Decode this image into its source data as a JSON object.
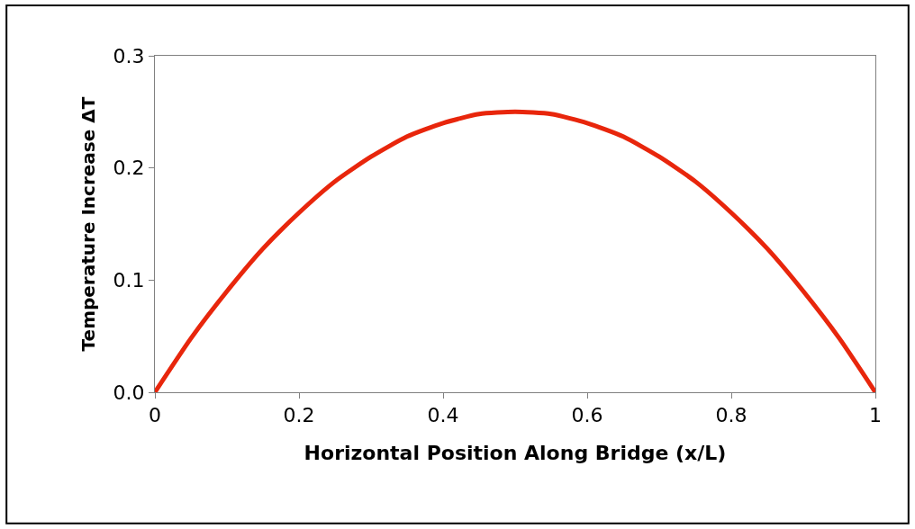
{
  "chart_data": {
    "type": "line",
    "xlabel": "Horizontal Position Along Bridge (x/L)",
    "ylabel": "Temperature Increase ΔT",
    "x": [
      0,
      0.05,
      0.1,
      0.15,
      0.2,
      0.25,
      0.3,
      0.35,
      0.4,
      0.45,
      0.5,
      0.55,
      0.6,
      0.65,
      0.7,
      0.75,
      0.8,
      0.85,
      0.9,
      0.95,
      1
    ],
    "series": [
      {
        "color": "#e8260c",
        "values": [
          0,
          0.048,
          0.09,
          0.128,
          0.16,
          0.188,
          0.21,
          0.228,
          0.24,
          0.248,
          0.25,
          0.248,
          0.24,
          0.228,
          0.21,
          0.188,
          0.16,
          0.128,
          0.09,
          0.048,
          0
        ]
      }
    ],
    "xlim": [
      0,
      1
    ],
    "xticks": [
      0,
      0.2,
      0.4,
      0.6,
      0.8,
      1
    ],
    "ylim": [
      0,
      0.3
    ],
    "yticks": [
      {
        "value": 0,
        "label": "0.0"
      },
      {
        "value": 0.1,
        "label": "0.1"
      },
      {
        "value": 0.2,
        "label": "0.2"
      },
      {
        "value": 0.3,
        "label": "0.3"
      }
    ],
    "marker": "none",
    "line_style": "solid"
  }
}
